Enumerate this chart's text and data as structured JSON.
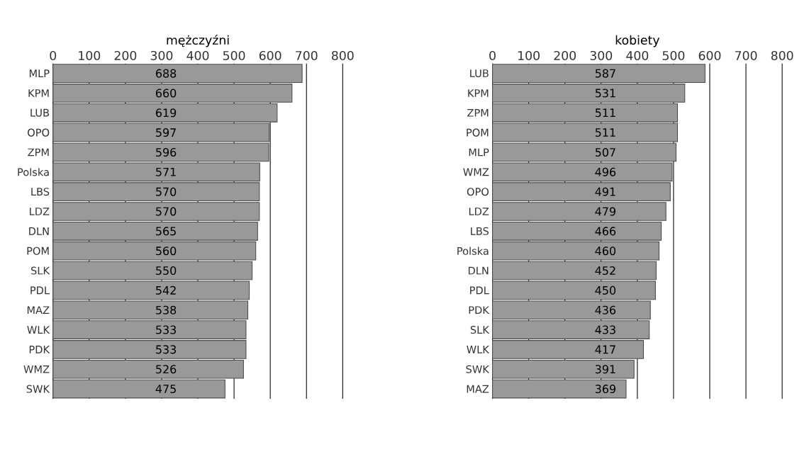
{
  "chart_data": [
    {
      "type": "bar",
      "orientation": "horizontal",
      "title": "mężczyźni",
      "categories": [
        "MLP",
        "KPM",
        "LUB",
        "OPO",
        "ZPM",
        "Polska",
        "LBS",
        "LDZ",
        "DLN",
        "POM",
        "SLK",
        "PDL",
        "MAZ",
        "WLK",
        "PDK",
        "WMZ",
        "SWK"
      ],
      "values": [
        688,
        660,
        619,
        597,
        596,
        571,
        570,
        570,
        565,
        560,
        550,
        542,
        538,
        533,
        533,
        526,
        475
      ],
      "color": "#999999",
      "xlim": [
        0,
        800
      ],
      "xticks": [
        0,
        100,
        200,
        300,
        400,
        500,
        600,
        700,
        800
      ],
      "grid": "x",
      "data_labels": true
    },
    {
      "type": "bar",
      "orientation": "horizontal",
      "title": "kobiety",
      "categories": [
        "LUB",
        "KPM",
        "ZPM",
        "POM",
        "MLP",
        "WMZ",
        "OPO",
        "LDZ",
        "LBS",
        "Polska",
        "DLN",
        "PDL",
        "PDK",
        "SLK",
        "WLK",
        "SWK",
        "MAZ"
      ],
      "values": [
        587,
        531,
        511,
        511,
        507,
        496,
        491,
        479,
        466,
        460,
        452,
        450,
        436,
        433,
        417,
        391,
        369
      ],
      "color": "#999999",
      "xlim": [
        0,
        800
      ],
      "xticks": [
        0,
        100,
        200,
        300,
        400,
        500,
        600,
        700,
        800
      ],
      "grid": "x",
      "data_labels": true
    }
  ]
}
